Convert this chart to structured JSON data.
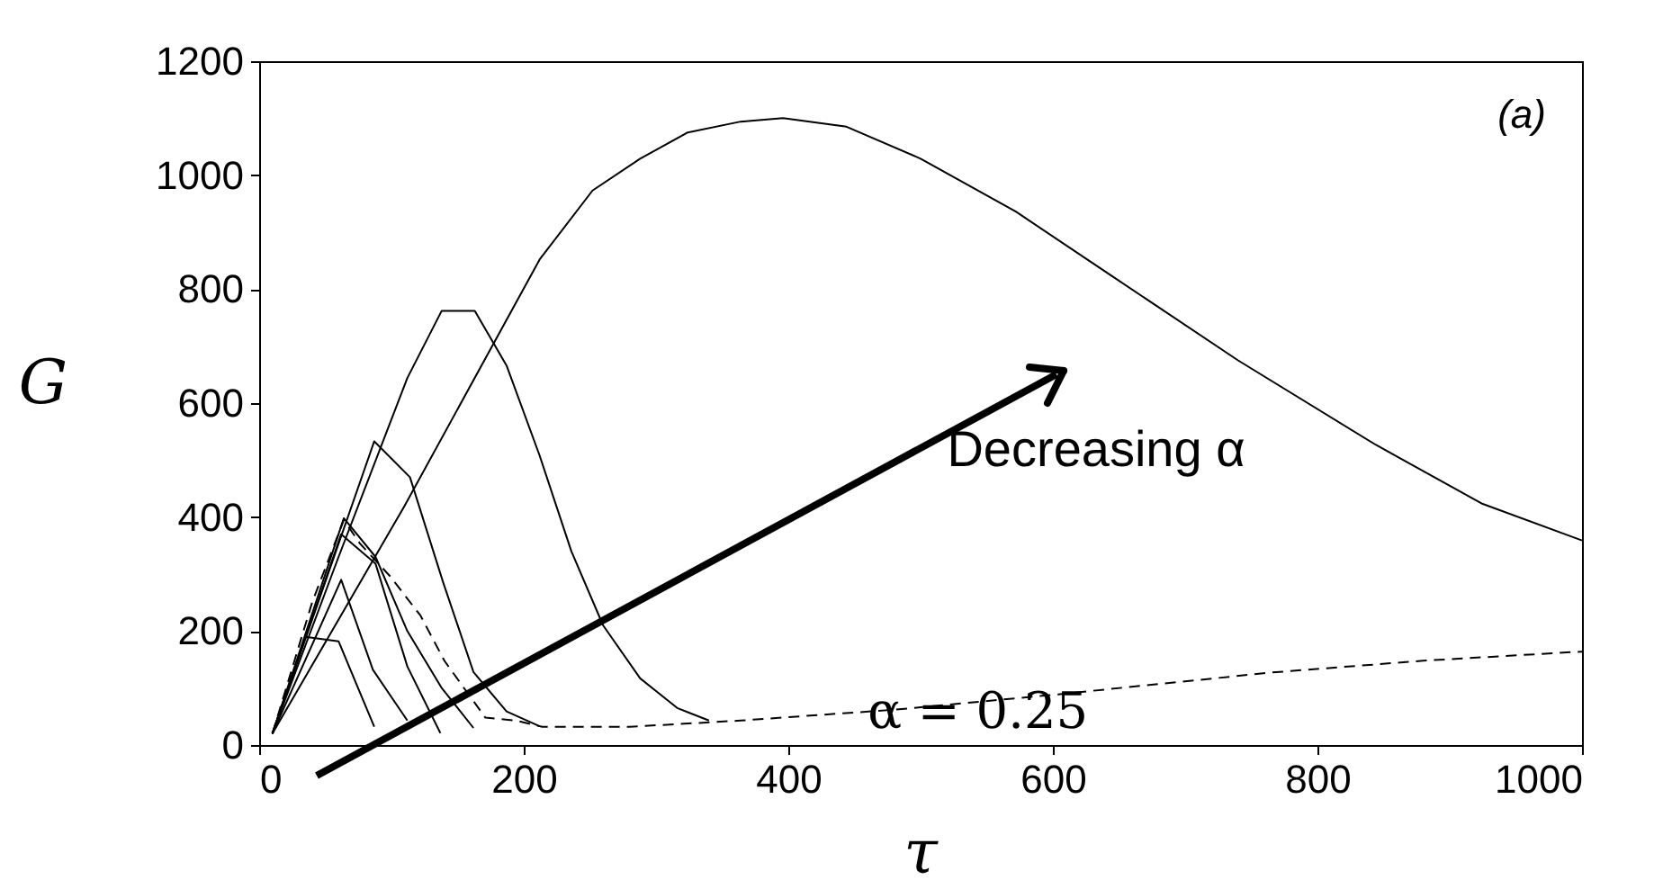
{
  "chart_data": {
    "type": "line",
    "xlabel": "τ",
    "ylabel": "G",
    "xlim": [
      0,
      1000
    ],
    "ylim": [
      0,
      1200
    ],
    "xticks": [
      0,
      200,
      400,
      600,
      800,
      1000
    ],
    "yticks": [
      0,
      200,
      400,
      600,
      800,
      1000,
      1200
    ],
    "grid": false,
    "marker": "none",
    "series": [
      {
        "color": "#000000",
        "line_style": "solid",
        "x": [
          10,
          35,
          60,
          87
        ],
        "values": [
          20,
          190,
          182,
          32
        ]
      },
      {
        "color": "#000000",
        "line_style": "solid",
        "x": [
          10,
          62,
          86,
          112
        ],
        "values": [
          20,
          290,
          132,
          43
        ]
      },
      {
        "color": "#000000",
        "line_style": "solid",
        "x": [
          10,
          62,
          88,
          112,
          137
        ],
        "values": [
          20,
          370,
          318,
          138,
          21
        ]
      },
      {
        "color": "#000000",
        "line_style": "solid",
        "x": [
          10,
          64,
          88,
          112,
          138,
          162
        ],
        "values": [
          20,
          398,
          330,
          200,
          100,
          30
        ]
      },
      {
        "color": "#000000",
        "line_style": "dashed",
        "x": [
          10,
          40,
          64,
          76,
          99,
          122,
          140,
          153,
          171,
          194,
          214,
          280,
          364,
          480,
          604,
          764,
          880,
          1000
        ],
        "values": [
          20,
          250,
          395,
          354,
          296,
          227,
          148,
          106,
          48,
          43,
          32,
          32,
          43,
          62,
          89,
          127,
          148,
          164
        ]
      },
      {
        "color": "#000000",
        "line_style": "solid",
        "x": [
          10,
          87,
          114,
          139,
          162,
          187,
          212
        ],
        "values": [
          20,
          533,
          470,
          286,
          128,
          59,
          33
        ]
      },
      {
        "color": "#000000",
        "line_style": "solid",
        "x": [
          10,
          60,
          112,
          138,
          163,
          187,
          212,
          236,
          260,
          288,
          316,
          340
        ],
        "values": [
          20,
          330,
          644,
          762,
          762,
          666,
          508,
          340,
          210,
          117,
          65,
          43
        ]
      },
      {
        "color": "#000000",
        "line_style": "solid",
        "x": [
          10,
          110,
          212,
          252,
          288,
          324,
          364,
          396,
          444,
          500,
          572,
          644,
          740,
          844,
          924,
          1000
        ],
        "values": [
          20,
          420,
          852,
          973,
          1029,
          1075,
          1094,
          1100,
          1085,
          1029,
          936,
          824,
          675,
          527,
          424,
          359
        ]
      }
    ],
    "annotations": [
      "(a)",
      "Decreasing α",
      {
        "text": "α = 0.25",
        "x": 460,
        "y": 55
      }
    ]
  }
}
